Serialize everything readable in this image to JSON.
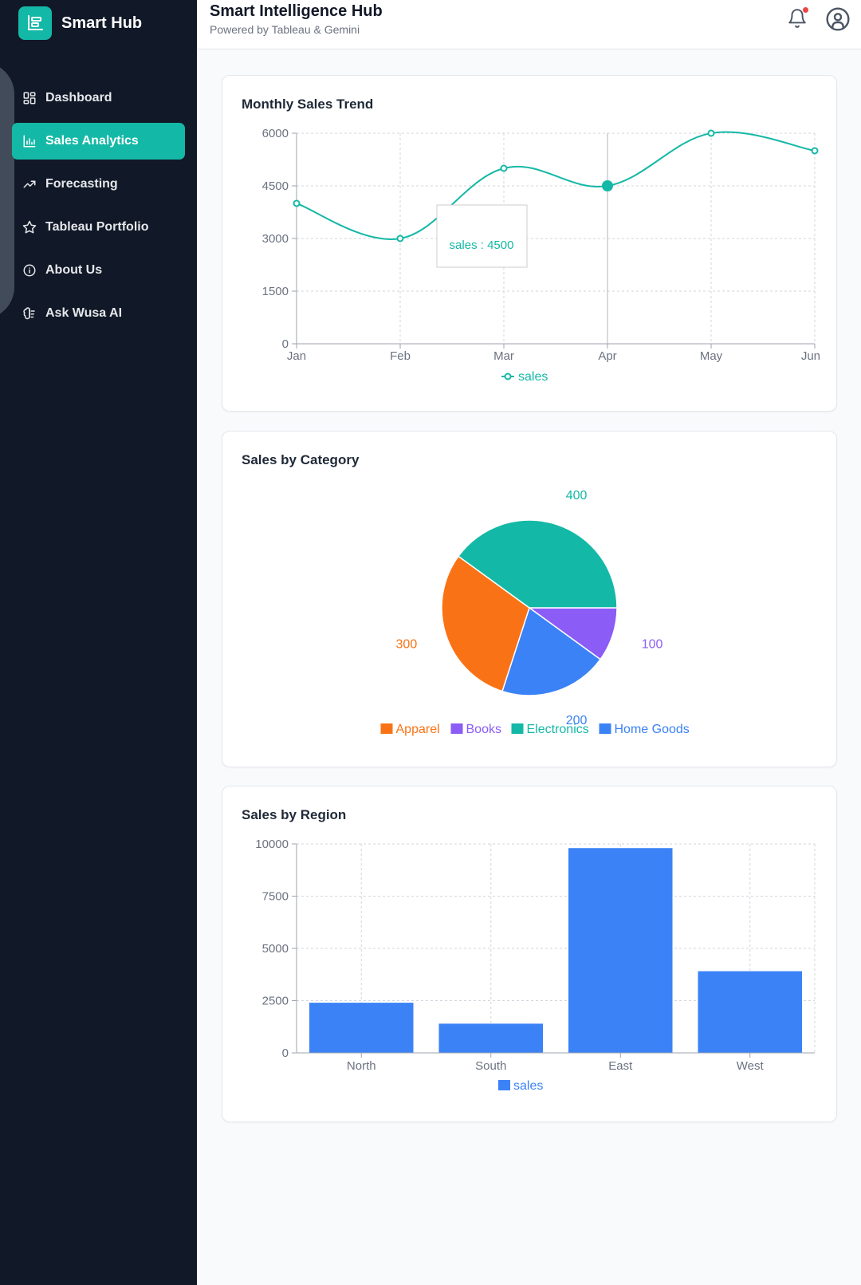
{
  "brand": {
    "name": "Smart Hub",
    "logo_icon": "bar-chart-logo-icon"
  },
  "sidebar": {
    "items": [
      {
        "label": "Dashboard",
        "icon": "grid-icon",
        "active": false
      },
      {
        "label": "Sales Analytics",
        "icon": "bar-chart-icon",
        "active": true
      },
      {
        "label": "Forecasting",
        "icon": "trending-up-icon",
        "active": false
      },
      {
        "label": "Tableau Portfolio",
        "icon": "star-icon",
        "active": false
      },
      {
        "label": "About Us",
        "icon": "info-icon",
        "active": false
      },
      {
        "label": "Ask Wusa AI",
        "icon": "brain-icon",
        "active": false
      }
    ]
  },
  "header": {
    "title": "Smart Intelligence Hub",
    "subtitle": "Powered by Tableau & Gemini",
    "notification_icon": "bell-icon",
    "user_icon": "user-circle-icon"
  },
  "colors": {
    "accent": "#14b8a6",
    "sidebar_bg": "#111827",
    "apparel": "#f97316",
    "books": "#8b5cf6",
    "electronics": "#14b8a6",
    "home_goods": "#3b82f6",
    "notification_dot": "#ef4444"
  },
  "chart_data": [
    {
      "type": "line",
      "title": "Monthly Sales Trend",
      "categories": [
        "Jan",
        "Feb",
        "Mar",
        "Apr",
        "May",
        "Jun"
      ],
      "series": [
        {
          "name": "sales",
          "values": [
            4000,
            3000,
            5000,
            4500,
            6000,
            5500
          ]
        }
      ],
      "ylim": [
        0,
        6000
      ],
      "yticks": [
        0,
        1500,
        3000,
        4500,
        6000
      ],
      "grid": true,
      "legend": "bottom",
      "tooltip": {
        "text": "sales : 4500",
        "category": "Apr"
      }
    },
    {
      "type": "pie",
      "title": "Sales by Category",
      "categories": [
        "Apparel",
        "Books",
        "Electronics",
        "Home Goods"
      ],
      "values": [
        300,
        100,
        400,
        200
      ],
      "legend": "bottom"
    },
    {
      "type": "bar",
      "title": "Sales by Region",
      "categories": [
        "North",
        "South",
        "East",
        "West"
      ],
      "series": [
        {
          "name": "sales",
          "values": [
            2400,
            1398,
            9800,
            3908
          ]
        }
      ],
      "ylim": [
        0,
        10000
      ],
      "yticks": [
        0,
        2500,
        5000,
        7500,
        10000
      ],
      "grid": true,
      "legend": "bottom"
    }
  ]
}
